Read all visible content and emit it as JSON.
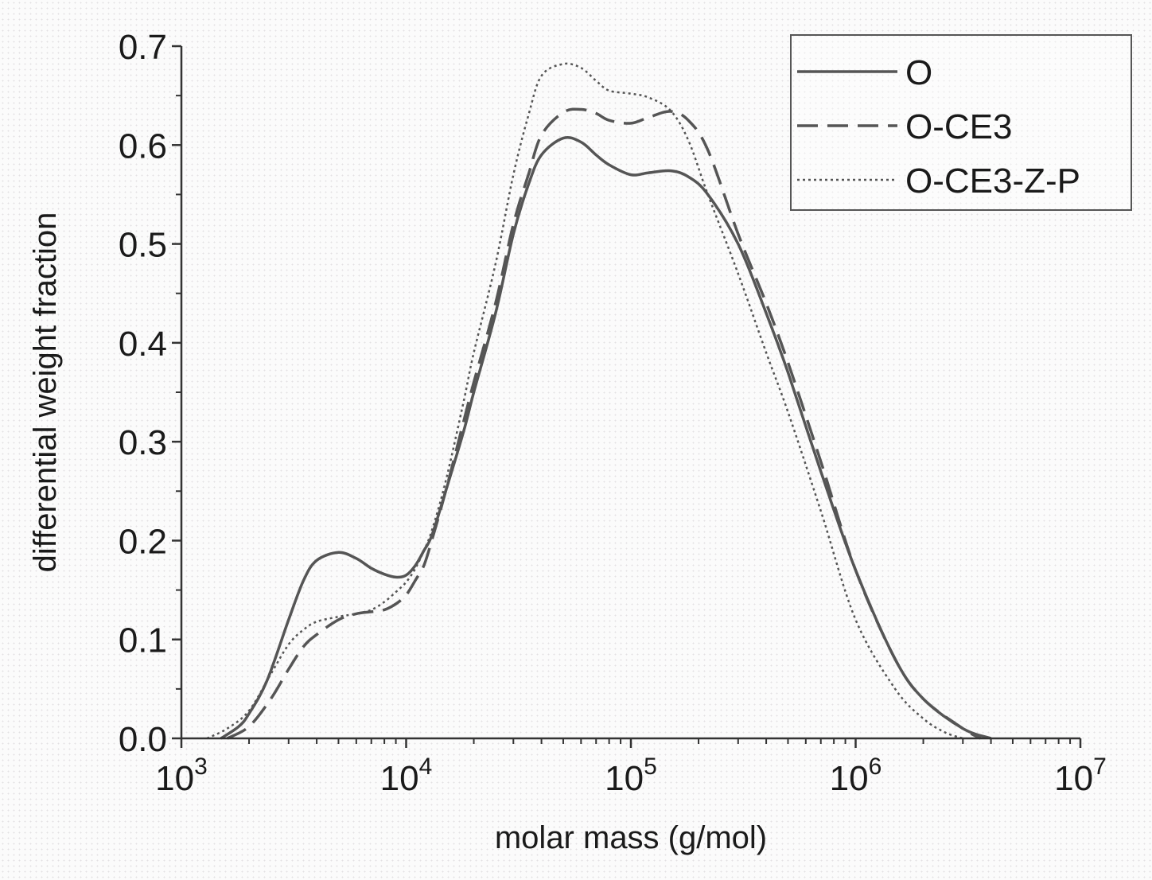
{
  "chart_data": {
    "type": "line",
    "xlabel": "molar mass (g/mol)",
    "ylabel": "differential weight fraction",
    "x_scale": "log",
    "xlim": [
      1000,
      10000000
    ],
    "ylim": [
      0,
      0.7
    ],
    "x_ticks": [
      {
        "value": 1000,
        "base": "10",
        "exp": "3"
      },
      {
        "value": 10000,
        "base": "10",
        "exp": "4"
      },
      {
        "value": 100000,
        "base": "10",
        "exp": "5"
      },
      {
        "value": 1000000,
        "base": "10",
        "exp": "6"
      },
      {
        "value": 10000000,
        "base": "10",
        "exp": "7"
      }
    ],
    "y_ticks": [
      {
        "value": 0.0,
        "label": "0.0"
      },
      {
        "value": 0.1,
        "label": "0.1"
      },
      {
        "value": 0.2,
        "label": "0.2"
      },
      {
        "value": 0.3,
        "label": "0.3"
      },
      {
        "value": 0.4,
        "label": "0.4"
      },
      {
        "value": 0.5,
        "label": "0.5"
      },
      {
        "value": 0.6,
        "label": "0.6"
      },
      {
        "value": 0.7,
        "label": "0.7"
      }
    ],
    "grid": false,
    "legend_position": "top-right",
    "series": [
      {
        "name": "O",
        "style": "solid",
        "color": "#555555",
        "points": [
          [
            1500,
            0.0
          ],
          [
            1800,
            0.012
          ],
          [
            2000,
            0.025
          ],
          [
            2400,
            0.058
          ],
          [
            3000,
            0.12
          ],
          [
            3500,
            0.16
          ],
          [
            4000,
            0.18
          ],
          [
            5000,
            0.188
          ],
          [
            6000,
            0.182
          ],
          [
            7000,
            0.172
          ],
          [
            8000,
            0.166
          ],
          [
            9000,
            0.163
          ],
          [
            10000,
            0.165
          ],
          [
            11000,
            0.175
          ],
          [
            12000,
            0.19
          ],
          [
            13000,
            0.205
          ],
          [
            15000,
            0.25
          ],
          [
            18000,
            0.31
          ],
          [
            20000,
            0.35
          ],
          [
            25000,
            0.43
          ],
          [
            30000,
            0.51
          ],
          [
            35000,
            0.56
          ],
          [
            40000,
            0.59
          ],
          [
            50000,
            0.607
          ],
          [
            60000,
            0.603
          ],
          [
            70000,
            0.59
          ],
          [
            80000,
            0.58
          ],
          [
            100000,
            0.57
          ],
          [
            120000,
            0.572
          ],
          [
            150000,
            0.574
          ],
          [
            180000,
            0.568
          ],
          [
            220000,
            0.55
          ],
          [
            300000,
            0.5
          ],
          [
            400000,
            0.43
          ],
          [
            500000,
            0.37
          ],
          [
            700000,
            0.27
          ],
          [
            1000000,
            0.17
          ],
          [
            1500000,
            0.08
          ],
          [
            2000000,
            0.04
          ],
          [
            3000000,
            0.01
          ],
          [
            4000000,
            0.0
          ]
        ]
      },
      {
        "name": "O-CE3",
        "style": "dashed",
        "color": "#555555",
        "points": [
          [
            1600,
            0.0
          ],
          [
            2000,
            0.012
          ],
          [
            2500,
            0.04
          ],
          [
            3000,
            0.07
          ],
          [
            3500,
            0.093
          ],
          [
            4000,
            0.105
          ],
          [
            5000,
            0.12
          ],
          [
            6000,
            0.126
          ],
          [
            7000,
            0.128
          ],
          [
            8000,
            0.13
          ],
          [
            9000,
            0.136
          ],
          [
            10000,
            0.145
          ],
          [
            11000,
            0.16
          ],
          [
            12000,
            0.175
          ],
          [
            13000,
            0.2
          ],
          [
            15000,
            0.25
          ],
          [
            18000,
            0.32
          ],
          [
            20000,
            0.36
          ],
          [
            25000,
            0.44
          ],
          [
            30000,
            0.52
          ],
          [
            35000,
            0.57
          ],
          [
            40000,
            0.61
          ],
          [
            50000,
            0.633
          ],
          [
            60000,
            0.636
          ],
          [
            70000,
            0.632
          ],
          [
            80000,
            0.625
          ],
          [
            100000,
            0.622
          ],
          [
            120000,
            0.628
          ],
          [
            150000,
            0.634
          ],
          [
            180000,
            0.625
          ],
          [
            220000,
            0.595
          ],
          [
            300000,
            0.51
          ],
          [
            400000,
            0.44
          ],
          [
            500000,
            0.38
          ],
          [
            700000,
            0.28
          ],
          [
            1000000,
            0.17
          ],
          [
            1500000,
            0.08
          ],
          [
            2000000,
            0.04
          ],
          [
            3000000,
            0.01
          ],
          [
            3600000,
            0.0
          ]
        ]
      },
      {
        "name": "O-CE3-Z-P",
        "style": "dotted",
        "color": "#555555",
        "points": [
          [
            1300,
            0.0
          ],
          [
            1600,
            0.01
          ],
          [
            2000,
            0.028
          ],
          [
            2500,
            0.065
          ],
          [
            3000,
            0.095
          ],
          [
            3500,
            0.11
          ],
          [
            4000,
            0.118
          ],
          [
            5000,
            0.123
          ],
          [
            6000,
            0.126
          ],
          [
            7000,
            0.13
          ],
          [
            8000,
            0.138
          ],
          [
            9000,
            0.148
          ],
          [
            10000,
            0.158
          ],
          [
            11000,
            0.172
          ],
          [
            12000,
            0.19
          ],
          [
            13000,
            0.21
          ],
          [
            15000,
            0.26
          ],
          [
            18000,
            0.34
          ],
          [
            20000,
            0.39
          ],
          [
            25000,
            0.48
          ],
          [
            30000,
            0.57
          ],
          [
            35000,
            0.63
          ],
          [
            40000,
            0.67
          ],
          [
            50000,
            0.682
          ],
          [
            60000,
            0.678
          ],
          [
            70000,
            0.665
          ],
          [
            80000,
            0.655
          ],
          [
            100000,
            0.652
          ],
          [
            120000,
            0.648
          ],
          [
            150000,
            0.635
          ],
          [
            180000,
            0.605
          ],
          [
            220000,
            0.55
          ],
          [
            300000,
            0.47
          ],
          [
            400000,
            0.39
          ],
          [
            500000,
            0.33
          ],
          [
            700000,
            0.23
          ],
          [
            1000000,
            0.12
          ],
          [
            1500000,
            0.05
          ],
          [
            2000000,
            0.02
          ],
          [
            2500000,
            0.006
          ],
          [
            3000000,
            0.0
          ]
        ]
      }
    ]
  }
}
